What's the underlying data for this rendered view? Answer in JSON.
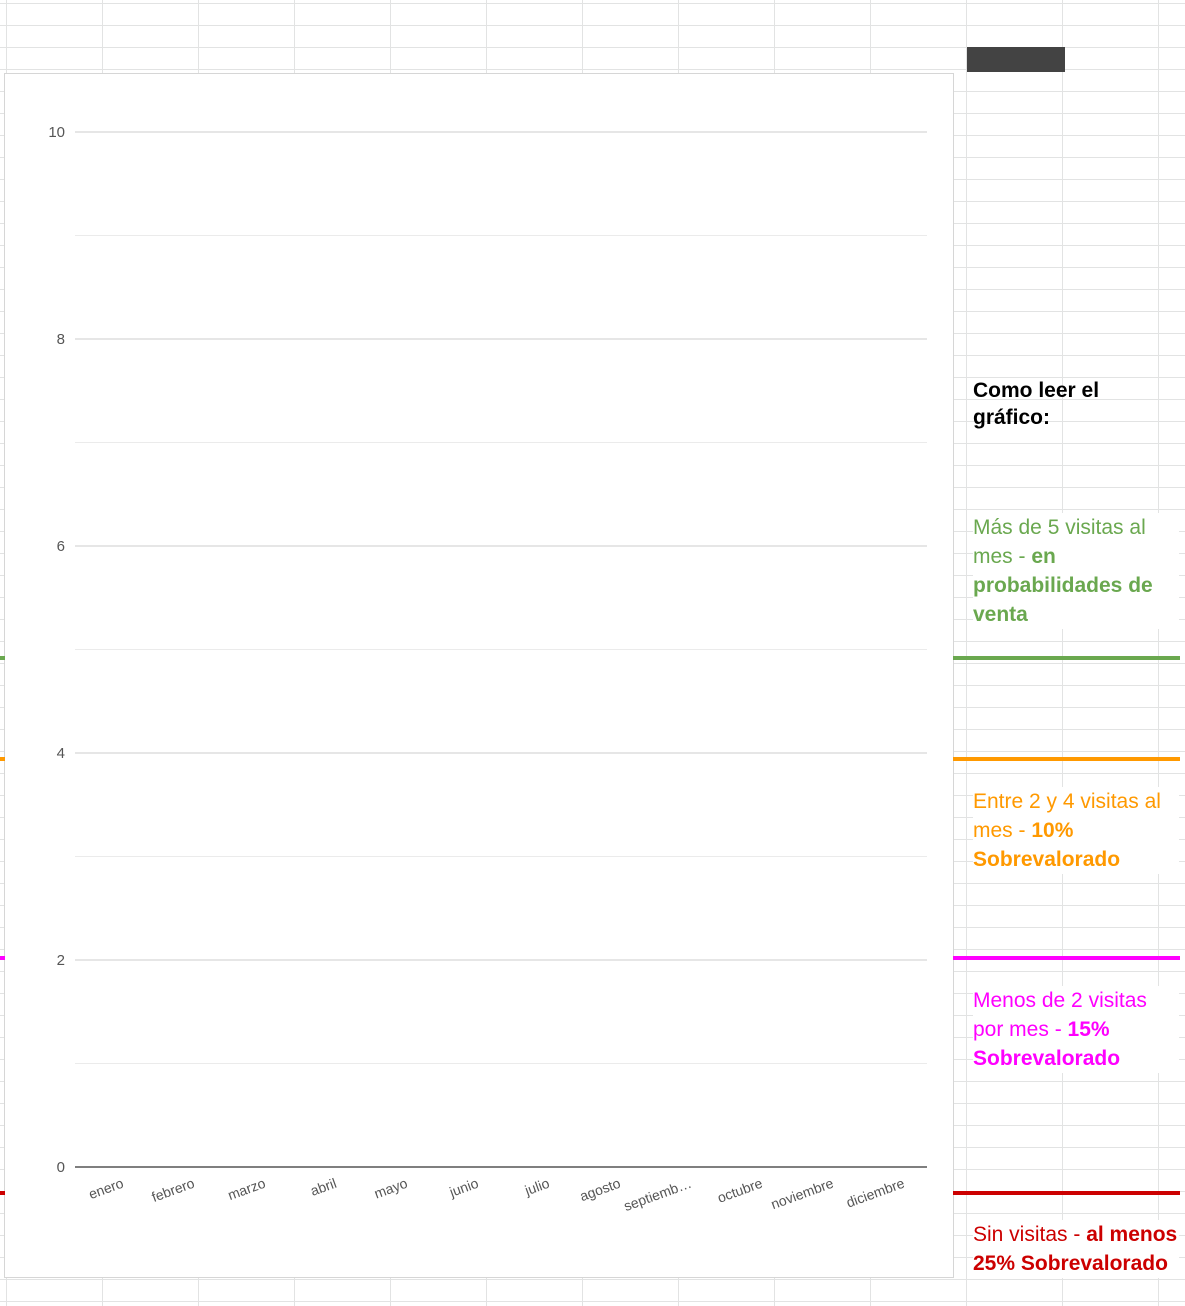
{
  "chart_data": {
    "type": "line",
    "categories": [
      "enero",
      "febrero",
      "marzo",
      "abril",
      "mayo",
      "junio",
      "julio",
      "agosto",
      "septiemb…",
      "octubre",
      "noviembre",
      "diciembre"
    ],
    "series": [],
    "ylim": [
      0,
      10
    ],
    "yticks": [
      0,
      2,
      4,
      6,
      8,
      10
    ],
    "ytick_labels": [
      "0",
      "2",
      "4",
      "6",
      "8",
      "10"
    ],
    "grid": true,
    "title": "",
    "xlabel": "",
    "ylabel": ""
  },
  "legend": {
    "title": "Como leer el gráfico:",
    "items": [
      {
        "id": "green",
        "value": 5,
        "color": "#6aa84f",
        "text": "Más de 5 visitas al mes - ",
        "bold": "en probabilidades de venta"
      },
      {
        "id": "orange",
        "value": 4,
        "color": "#ff9900",
        "text": "Entre 2 y 4 visitas al mes - ",
        "bold": "10% Sobrevalorado"
      },
      {
        "id": "magenta",
        "value": 2,
        "color": "#ff00ff",
        "text": "Menos de 2 visitas por mes - ",
        "bold": "15% Sobrevalorado"
      },
      {
        "id": "red",
        "value": 0,
        "color": "#cc0000",
        "text": "Sin visitas - ",
        "bold": "al menos 25% Sobrevalorado"
      }
    ]
  }
}
